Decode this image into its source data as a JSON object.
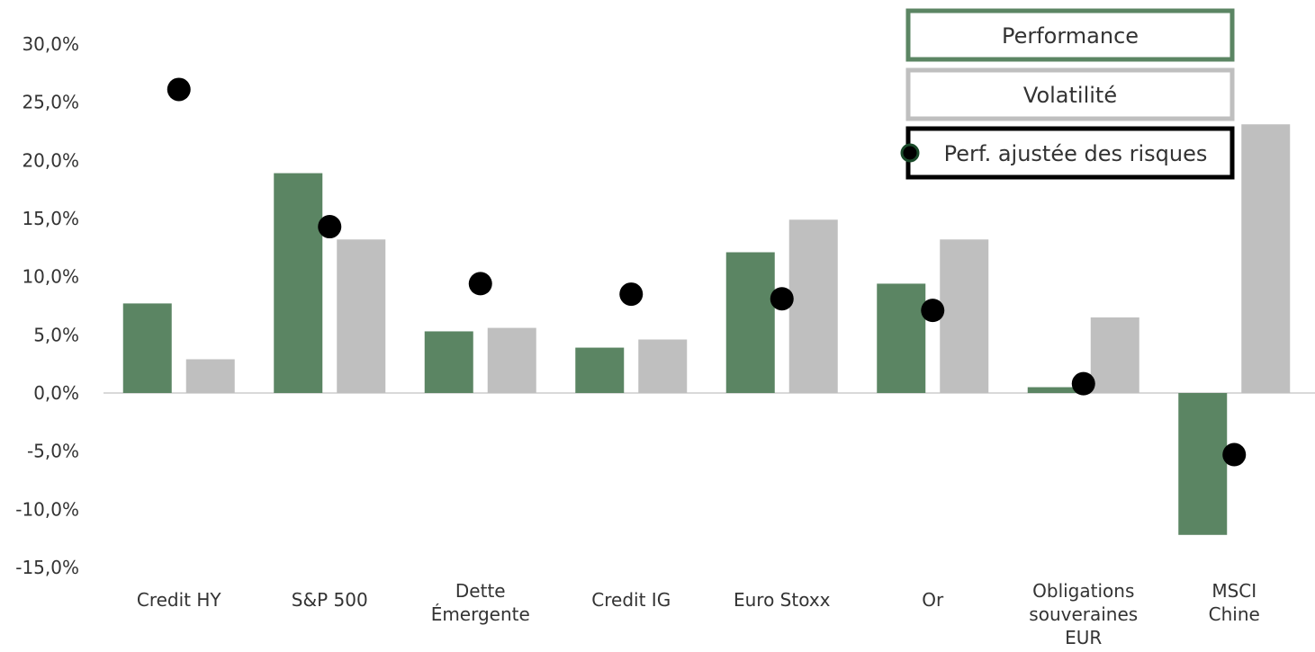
{
  "chart_data": {
    "type": "bar",
    "title": "",
    "xlabel": "",
    "ylabel": "",
    "ylim": [
      -15,
      30
    ],
    "ytick_step": 5,
    "ytick_labels": [
      "-15,0%",
      "-10,0%",
      "-5,0%",
      "0,0%",
      "5,0%",
      "10,0%",
      "15,0%",
      "20,0%",
      "25,0%",
      "30,0%"
    ],
    "categories": [
      [
        "Credit HY"
      ],
      [
        "S&P 500"
      ],
      [
        "Dette",
        "Émergente"
      ],
      [
        "Credit IG"
      ],
      [
        "Euro Stoxx"
      ],
      [
        "Or"
      ],
      [
        "Obligations",
        "souveraines",
        "EUR"
      ],
      [
        "MSCI",
        "Chine"
      ]
    ],
    "series": [
      {
        "name": "Performance",
        "kind": "bar",
        "color": "#5b8563",
        "values": [
          7.7,
          18.9,
          5.3,
          3.9,
          12.1,
          9.4,
          0.5,
          -12.2
        ]
      },
      {
        "name": "Volatilité",
        "kind": "bar",
        "color": "#bfbfbf",
        "values": [
          2.9,
          13.2,
          5.6,
          4.6,
          14.9,
          13.2,
          6.5,
          23.1
        ]
      },
      {
        "name": "Perf. ajustée des risques",
        "kind": "scatter",
        "color": "#000000",
        "values": [
          26.1,
          14.3,
          9.4,
          8.5,
          8.1,
          7.1,
          0.8,
          -5.3
        ]
      }
    ],
    "legend": "top-right",
    "grid": false
  }
}
